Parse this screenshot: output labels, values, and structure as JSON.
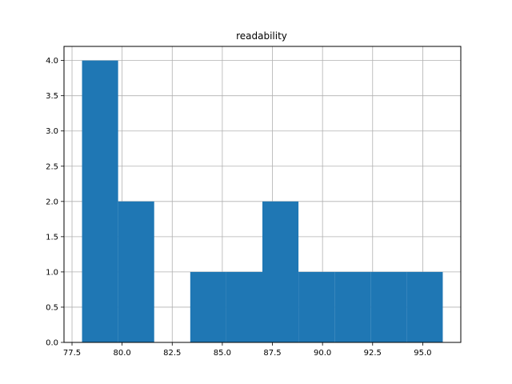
{
  "chart_data": {
    "type": "bar",
    "title": "readability",
    "xlabel": "",
    "ylabel": "",
    "grid": true,
    "bar_color": "#1f77b4",
    "xlim": [
      77.1,
      96.9
    ],
    "ylim": [
      0,
      4.2
    ],
    "bins": [
      {
        "x0": 78.0,
        "x1": 79.8,
        "count": 4
      },
      {
        "x0": 79.8,
        "x1": 81.6,
        "count": 2
      },
      {
        "x0": 81.6,
        "x1": 83.4,
        "count": 0
      },
      {
        "x0": 83.4,
        "x1": 85.2,
        "count": 1
      },
      {
        "x0": 85.2,
        "x1": 87.0,
        "count": 1
      },
      {
        "x0": 87.0,
        "x1": 88.8,
        "count": 2
      },
      {
        "x0": 88.8,
        "x1": 90.6,
        "count": 1
      },
      {
        "x0": 90.6,
        "x1": 92.4,
        "count": 1
      },
      {
        "x0": 92.4,
        "x1": 94.2,
        "count": 1
      },
      {
        "x0": 94.2,
        "x1": 96.0,
        "count": 1
      }
    ],
    "x_ticks": [
      77.5,
      80.0,
      82.5,
      85.0,
      87.5,
      90.0,
      92.5,
      95.0
    ],
    "x_tick_labels": [
      "77.5",
      "80.0",
      "82.5",
      "85.0",
      "87.5",
      "90.0",
      "92.5",
      "95.0"
    ],
    "y_ticks": [
      0.0,
      0.5,
      1.0,
      1.5,
      2.0,
      2.5,
      3.0,
      3.5,
      4.0
    ],
    "y_tick_labels": [
      "0.0",
      "0.5",
      "1.0",
      "1.5",
      "2.0",
      "2.5",
      "3.0",
      "3.5",
      "4.0"
    ]
  }
}
